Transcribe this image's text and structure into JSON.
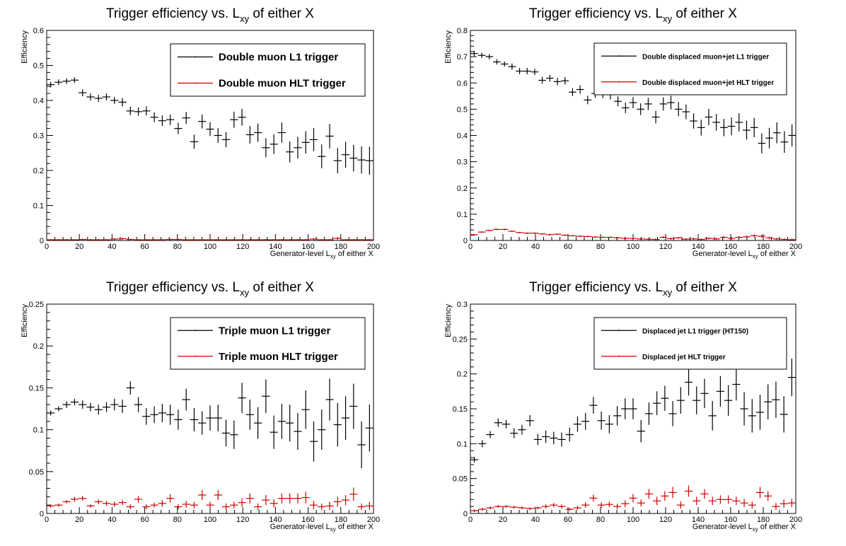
{
  "chart_data": [
    {
      "type": "scatter",
      "title": "Trigger efficiency vs. L",
      "title_sub": "xy",
      "title_suffix": " of either X",
      "xlabel": "Generator-level L",
      "xlabel_sub": "xy",
      "xlabel_suffix": " of either X",
      "ylabel": "Efficiency",
      "xlim": [
        0,
        200
      ],
      "ylim": [
        0,
        0.6
      ],
      "xticks": [
        "0",
        "20",
        "40",
        "60",
        "80",
        "100",
        "120",
        "140",
        "160",
        "180",
        "200"
      ],
      "yticks": [
        "0",
        "0.1",
        "0.2",
        "0.3",
        "0.4",
        "0.5",
        "0.6"
      ],
      "legend_position": "top-right",
      "legend_style": "large",
      "series": [
        {
          "name": "Double muon L1 trigger",
          "color": "#000000",
          "values": [
            0.445,
            0.452,
            0.455,
            0.458,
            0.422,
            0.41,
            0.406,
            0.41,
            0.4,
            0.395,
            0.37,
            0.368,
            0.37,
            0.352,
            0.342,
            0.345,
            0.32,
            0.35,
            0.282,
            0.34,
            0.318,
            0.3,
            0.288,
            0.345,
            0.352,
            0.302,
            0.308,
            0.265,
            0.275,
            0.308,
            0.253,
            0.265,
            0.28,
            0.288,
            0.24,
            0.298,
            0.228,
            0.245,
            0.235,
            0.23,
            0.228
          ],
          "errors": [
            0.008,
            0.008,
            0.008,
            0.008,
            0.01,
            0.01,
            0.01,
            0.01,
            0.01,
            0.012,
            0.012,
            0.012,
            0.013,
            0.014,
            0.015,
            0.015,
            0.016,
            0.017,
            0.02,
            0.02,
            0.02,
            0.021,
            0.022,
            0.023,
            0.024,
            0.025,
            0.026,
            0.027,
            0.028,
            0.029,
            0.03,
            0.031,
            0.032,
            0.033,
            0.034,
            0.035,
            0.036,
            0.037,
            0.038,
            0.039,
            0.04
          ]
        },
        {
          "name": "Double muon HLT trigger",
          "color": "#cc0000",
          "values": [
            0.002,
            0.002,
            0.002,
            0.002,
            0.003,
            0.002,
            0.002,
            0.002,
            0.004,
            0.005,
            0.003,
            0.002,
            0.002,
            0.002,
            0.002,
            0.003,
            0.003,
            0.002,
            0.002,
            0.002,
            0.002,
            0.002,
            0.002,
            0.002,
            0.002,
            0.002,
            0.002,
            0.002,
            0.002,
            0.002,
            0.002,
            0.002,
            0.002,
            0.004,
            0.002,
            0.002,
            0.006,
            0.002,
            0.002,
            0.002,
            0.002
          ],
          "errors": [
            0.002,
            0.002,
            0.002,
            0.002,
            0.002,
            0.002,
            0.002,
            0.002,
            0.003,
            0.003,
            0.002,
            0.002,
            0.002,
            0.002,
            0.002,
            0.002,
            0.002,
            0.002,
            0.002,
            0.002,
            0.002,
            0.002,
            0.002,
            0.002,
            0.002,
            0.002,
            0.002,
            0.002,
            0.002,
            0.002,
            0.002,
            0.002,
            0.002,
            0.003,
            0.002,
            0.002,
            0.004,
            0.002,
            0.002,
            0.002,
            0.002
          ]
        }
      ]
    },
    {
      "type": "scatter",
      "title": "Trigger efficiency vs. L",
      "title_sub": "xy",
      "title_suffix": " of either X",
      "xlabel": "Generator-level L",
      "xlabel_sub": "xy",
      "xlabel_suffix": " of either X",
      "ylabel": "Efficiency",
      "xlim": [
        0,
        200
      ],
      "ylim": [
        0,
        0.8
      ],
      "xticks": [
        "0",
        "20",
        "40",
        "60",
        "80",
        "100",
        "120",
        "140",
        "160",
        "180",
        "200"
      ],
      "yticks": [
        "0",
        "0.1",
        "0.2",
        "0.3",
        "0.4",
        "0.5",
        "0.6",
        "0.7",
        "0.8"
      ],
      "legend_position": "top-right",
      "legend_style": "small",
      "series": [
        {
          "name": "Double displaced muon+jet L1 trigger",
          "color": "#000000",
          "values": [
            0.712,
            0.705,
            0.7,
            0.68,
            0.672,
            0.662,
            0.645,
            0.645,
            0.642,
            0.61,
            0.618,
            0.605,
            0.608,
            0.565,
            0.575,
            0.535,
            0.56,
            0.56,
            0.555,
            0.53,
            0.505,
            0.525,
            0.5,
            0.52,
            0.47,
            0.52,
            0.525,
            0.5,
            0.49,
            0.455,
            0.43,
            0.47,
            0.45,
            0.43,
            0.435,
            0.45,
            0.42,
            0.43,
            0.37,
            0.39,
            0.41,
            0.375,
            0.4
          ],
          "errors": [
            0.01,
            0.01,
            0.01,
            0.01,
            0.01,
            0.012,
            0.012,
            0.012,
            0.012,
            0.013,
            0.013,
            0.014,
            0.014,
            0.015,
            0.016,
            0.016,
            0.017,
            0.018,
            0.018,
            0.019,
            0.02,
            0.021,
            0.022,
            0.023,
            0.024,
            0.025,
            0.026,
            0.027,
            0.028,
            0.029,
            0.03,
            0.031,
            0.032,
            0.033,
            0.034,
            0.035,
            0.036,
            0.037,
            0.038,
            0.039,
            0.04,
            0.041,
            0.042
          ]
        },
        {
          "name": "Double displaced muon+jet HLT trigger",
          "color": "#cc0000",
          "values": [
            0.022,
            0.032,
            0.038,
            0.042,
            0.042,
            0.035,
            0.03,
            0.028,
            0.028,
            0.025,
            0.022,
            0.024,
            0.02,
            0.018,
            0.016,
            0.015,
            0.013,
            0.012,
            0.012,
            0.01,
            0.008,
            0.008,
            0.006,
            0.005,
            0.004,
            0.012,
            0.007,
            0.01,
            0.005,
            0.006,
            0.004,
            0.008,
            0.006,
            0.012,
            0.008,
            0.012,
            0.014,
            0.018,
            0.016,
            0.01,
            0.006,
            0.004,
            0.003
          ],
          "errors": [
            0.003,
            0.003,
            0.003,
            0.003,
            0.003,
            0.003,
            0.003,
            0.003,
            0.003,
            0.003,
            0.003,
            0.003,
            0.003,
            0.003,
            0.003,
            0.003,
            0.003,
            0.003,
            0.003,
            0.003,
            0.003,
            0.003,
            0.003,
            0.003,
            0.003,
            0.004,
            0.004,
            0.004,
            0.004,
            0.004,
            0.004,
            0.004,
            0.004,
            0.005,
            0.005,
            0.005,
            0.005,
            0.006,
            0.006,
            0.005,
            0.004,
            0.004,
            0.004
          ]
        }
      ]
    },
    {
      "type": "scatter",
      "title": "Trigger efficiency vs. L",
      "title_sub": "xy",
      "title_suffix": " of either X",
      "xlabel": "Generator-level L",
      "xlabel_sub": "xy",
      "xlabel_suffix": " of either X",
      "ylabel": "Efficiency",
      "xlim": [
        0,
        200
      ],
      "ylim": [
        0,
        0.25
      ],
      "xticks": [
        "0",
        "20",
        "40",
        "60",
        "80",
        "100",
        "120",
        "140",
        "160",
        "180",
        "200"
      ],
      "yticks": [
        "0",
        "0.05",
        "0.1",
        "0.15",
        "0.2",
        "0.25"
      ],
      "legend_position": "top-right",
      "legend_style": "large",
      "series": [
        {
          "name": "Triple muon L1 trigger",
          "color": "#000000",
          "values": [
            0.12,
            0.125,
            0.13,
            0.133,
            0.13,
            0.127,
            0.124,
            0.127,
            0.13,
            0.128,
            0.15,
            0.13,
            0.116,
            0.118,
            0.12,
            0.118,
            0.112,
            0.136,
            0.112,
            0.108,
            0.114,
            0.114,
            0.096,
            0.094,
            0.138,
            0.118,
            0.108,
            0.14,
            0.097,
            0.11,
            0.108,
            0.098,
            0.124,
            0.086,
            0.1,
            0.136,
            0.106,
            0.114,
            0.128,
            0.082,
            0.102
          ],
          "errors": [
            0.003,
            0.003,
            0.004,
            0.004,
            0.005,
            0.005,
            0.006,
            0.006,
            0.007,
            0.008,
            0.008,
            0.009,
            0.01,
            0.01,
            0.011,
            0.012,
            0.012,
            0.013,
            0.014,
            0.014,
            0.015,
            0.016,
            0.016,
            0.017,
            0.018,
            0.018,
            0.019,
            0.02,
            0.02,
            0.021,
            0.022,
            0.022,
            0.023,
            0.024,
            0.024,
            0.025,
            0.026,
            0.026,
            0.027,
            0.028,
            0.028
          ]
        },
        {
          "name": "Triple muon HLT trigger",
          "color": "#cc0000",
          "values": [
            0.009,
            0.01,
            0.014,
            0.017,
            0.018,
            0.009,
            0.014,
            0.012,
            0.011,
            0.013,
            0.008,
            0.017,
            0.008,
            0.01,
            0.012,
            0.018,
            0.008,
            0.011,
            0.01,
            0.022,
            0.01,
            0.022,
            0.008,
            0.01,
            0.013,
            0.018,
            0.008,
            0.016,
            0.012,
            0.018,
            0.018,
            0.018,
            0.019,
            0.01,
            0.008,
            0.009,
            0.014,
            0.016,
            0.023,
            0.008,
            0.009
          ],
          "errors": [
            0.002,
            0.002,
            0.002,
            0.003,
            0.003,
            0.002,
            0.003,
            0.003,
            0.003,
            0.003,
            0.003,
            0.004,
            0.003,
            0.003,
            0.004,
            0.005,
            0.003,
            0.004,
            0.004,
            0.006,
            0.004,
            0.006,
            0.004,
            0.004,
            0.005,
            0.006,
            0.004,
            0.006,
            0.005,
            0.006,
            0.006,
            0.006,
            0.007,
            0.005,
            0.004,
            0.005,
            0.006,
            0.006,
            0.008,
            0.004,
            0.005
          ]
        }
      ]
    },
    {
      "type": "scatter",
      "title": "Trigger efficiency vs. L",
      "title_sub": "xy",
      "title_suffix": " of either X",
      "xlabel": "Generator-level L",
      "xlabel_sub": "xy",
      "xlabel_suffix": " of either X",
      "ylabel": "Efficiency",
      "xlim": [
        0,
        200
      ],
      "ylim": [
        0,
        0.3
      ],
      "xticks": [
        "0",
        "20",
        "40",
        "60",
        "80",
        "100",
        "120",
        "140",
        "160",
        "180",
        "200"
      ],
      "yticks": [
        "0",
        "0.05",
        "0.1",
        "0.15",
        "0.2",
        "0.25",
        "0.3"
      ],
      "legend_position": "top-right",
      "legend_style": "small",
      "series": [
        {
          "name": "Displaced jet L1 trigger (HT150)",
          "color": "#000000",
          "values": [
            0.077,
            0.1,
            0.113,
            0.13,
            0.128,
            0.115,
            0.12,
            0.133,
            0.106,
            0.11,
            0.108,
            0.106,
            0.113,
            0.128,
            0.132,
            0.155,
            0.133,
            0.128,
            0.14,
            0.15,
            0.15,
            0.118,
            0.143,
            0.158,
            0.165,
            0.143,
            0.162,
            0.188,
            0.162,
            0.172,
            0.14,
            0.175,
            0.162,
            0.185,
            0.15,
            0.14,
            0.145,
            0.16,
            0.163,
            0.142,
            0.195
          ],
          "errors": [
            0.004,
            0.005,
            0.005,
            0.006,
            0.006,
            0.007,
            0.007,
            0.008,
            0.008,
            0.009,
            0.009,
            0.01,
            0.01,
            0.011,
            0.012,
            0.012,
            0.013,
            0.013,
            0.014,
            0.015,
            0.015,
            0.016,
            0.016,
            0.017,
            0.018,
            0.018,
            0.019,
            0.019,
            0.02,
            0.021,
            0.021,
            0.022,
            0.022,
            0.023,
            0.024,
            0.024,
            0.025,
            0.025,
            0.026,
            0.026,
            0.027
          ]
        },
        {
          "name": "Displaced jet HLT trigger",
          "color": "#cc0000",
          "values": [
            0.004,
            0.006,
            0.008,
            0.01,
            0.01,
            0.009,
            0.008,
            0.007,
            0.008,
            0.01,
            0.012,
            0.01,
            0.006,
            0.008,
            0.012,
            0.022,
            0.012,
            0.013,
            0.01,
            0.014,
            0.022,
            0.015,
            0.028,
            0.018,
            0.025,
            0.03,
            0.012,
            0.032,
            0.018,
            0.028,
            0.018,
            0.02,
            0.02,
            0.018,
            0.015,
            0.012,
            0.03,
            0.025,
            0.01,
            0.014,
            0.015
          ],
          "errors": [
            0.002,
            0.002,
            0.002,
            0.002,
            0.002,
            0.002,
            0.002,
            0.002,
            0.002,
            0.003,
            0.003,
            0.003,
            0.002,
            0.003,
            0.004,
            0.005,
            0.004,
            0.004,
            0.004,
            0.005,
            0.006,
            0.005,
            0.007,
            0.006,
            0.007,
            0.008,
            0.005,
            0.008,
            0.006,
            0.007,
            0.006,
            0.006,
            0.006,
            0.006,
            0.006,
            0.005,
            0.008,
            0.007,
            0.005,
            0.006,
            0.006
          ]
        }
      ]
    }
  ]
}
